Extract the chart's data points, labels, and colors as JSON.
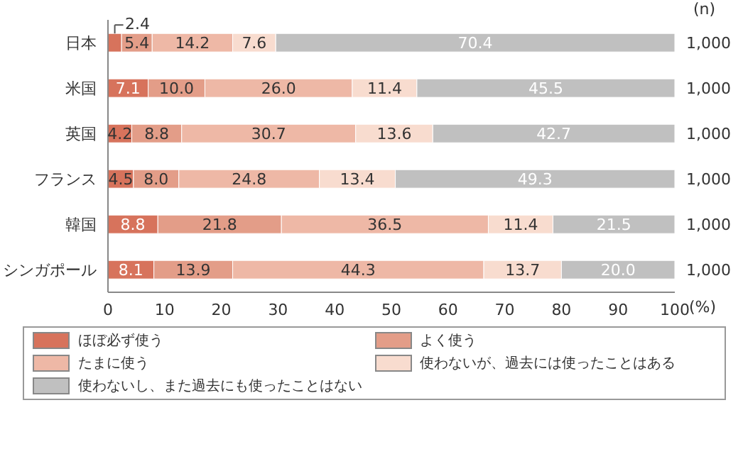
{
  "chart_data": {
    "type": "bar",
    "orientation": "horizontal",
    "stacked": true,
    "legend": "bottom",
    "xlabel": "(%)",
    "categories": [
      "日本",
      "米国",
      "英国",
      "フランス",
      "韓国",
      "シンガポール"
    ],
    "series": [
      {
        "name": "ほぼ必ず使う",
        "color": "#d7735c",
        "values": [
          2.4,
          7.1,
          4.2,
          4.5,
          8.8,
          8.1
        ],
        "value_labels": [
          "2.4",
          "7.1",
          "4.2",
          "4.5",
          "8.8",
          "8.1"
        ]
      },
      {
        "name": "よく使う",
        "color": "#e39d88",
        "values": [
          5.4,
          10.0,
          8.8,
          8.0,
          21.8,
          13.9
        ],
        "value_labels": [
          "5.4",
          "10.0",
          "8.8",
          "8.0",
          "21.8",
          "13.9"
        ]
      },
      {
        "name": "たまに使う",
        "color": "#eeb8a6",
        "values": [
          14.2,
          26.0,
          30.7,
          24.8,
          36.5,
          44.3
        ],
        "value_labels": [
          "14.2",
          "26.0",
          "30.7",
          "24.8",
          "36.5",
          "44.3"
        ]
      },
      {
        "name": "使わないが、過去には使ったことはある",
        "color": "#f8dccf",
        "values": [
          7.6,
          11.4,
          13.6,
          13.4,
          11.4,
          13.7
        ],
        "value_labels": [
          "7.6",
          "11.4",
          "13.6",
          "13.4",
          "11.4",
          "13.7"
        ]
      },
      {
        "name": "使わないし、また過去にも使ったことはない",
        "color": "#c0c0c0",
        "values": [
          70.4,
          45.5,
          42.7,
          49.3,
          21.5,
          20.0
        ],
        "value_labels": [
          "70.4",
          "45.5",
          "42.7",
          "49.3",
          "21.5",
          "20.0"
        ]
      }
    ],
    "xlim": [
      0,
      100
    ],
    "xticks": [
      0,
      10,
      20,
      30,
      40,
      50,
      60,
      70,
      80,
      90,
      100
    ],
    "annotations": [
      "(n)",
      "1,000",
      "1,000",
      "1,000",
      "1,000",
      "1,000",
      "1,000"
    ]
  }
}
